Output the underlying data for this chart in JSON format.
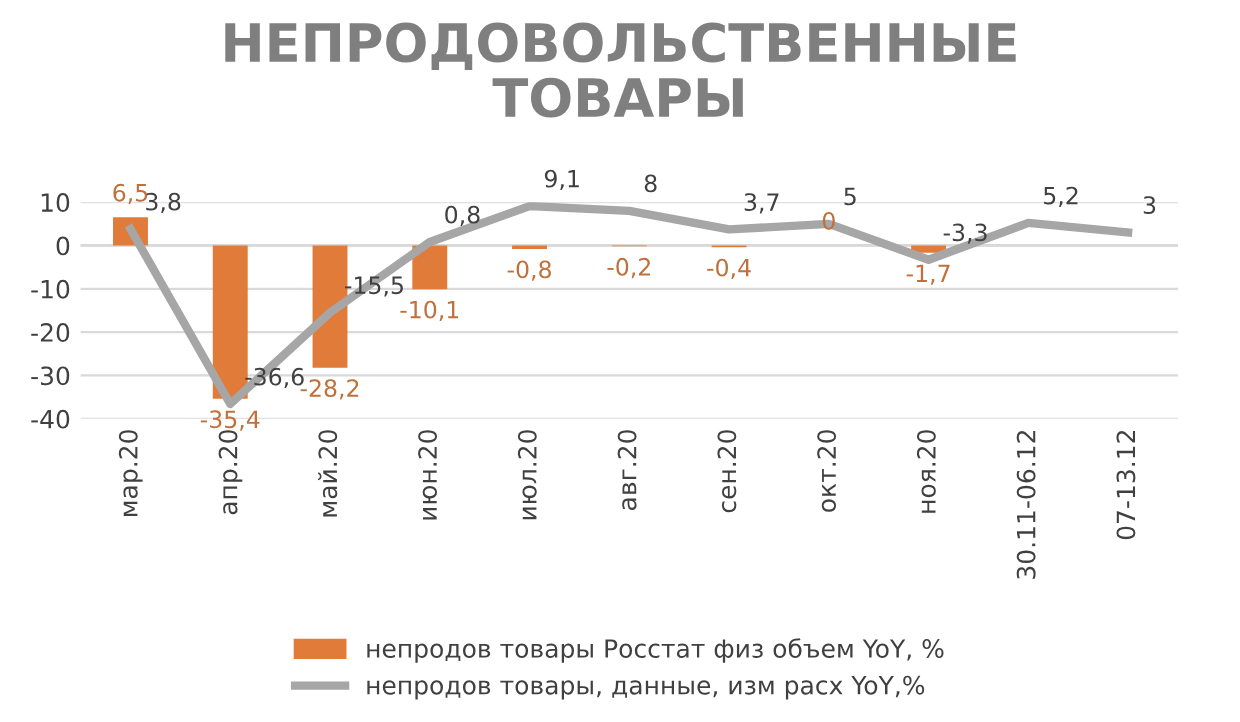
{
  "chart_data": {
    "type": "bar",
    "title": "НЕПРОДОВОЛЬСТВЕННЫЕ\nТОВАРЫ",
    "categories": [
      "мар.20",
      "апр.20",
      "май.20",
      "июн.20",
      "июл.20",
      "авг.20",
      "сен.20",
      "окт.20",
      "ноя.20",
      "30.11-06.12",
      "07-13.12"
    ],
    "series": [
      {
        "name": "непродов товары Росстат физ объем YoY, %",
        "color": "#e07b39",
        "values": [
          6.5,
          -35.4,
          -28.2,
          -10.1,
          -0.8,
          -0.2,
          -0.4,
          0,
          -1.7,
          null,
          null
        ],
        "value_labels": [
          "6,5",
          "-35,4",
          "-28,2",
          "-10,1",
          "-0,8",
          "-0,2",
          "-0,4",
          "0",
          "-1,7",
          null,
          null
        ]
      },
      {
        "name": "непродов товары, данные, изм расх YoY,%",
        "type": "line",
        "color": "#a6a6a6",
        "values": [
          3.8,
          -36.6,
          -15.5,
          0.8,
          9.1,
          8,
          3.7,
          5,
          -3.3,
          5.2,
          3
        ],
        "value_labels": [
          "3,8",
          "-36,6",
          "-15,5",
          "0,8",
          "9,1",
          "8",
          "3,7",
          "5",
          "-3,3",
          "5,2",
          "3"
        ]
      }
    ],
    "ylim": [
      -40,
      10
    ],
    "yticks": [
      -40,
      -30,
      -20,
      -10,
      0,
      10
    ],
    "grid": "y",
    "legend": "bottom",
    "marker": "none",
    "line_style": "solid"
  }
}
